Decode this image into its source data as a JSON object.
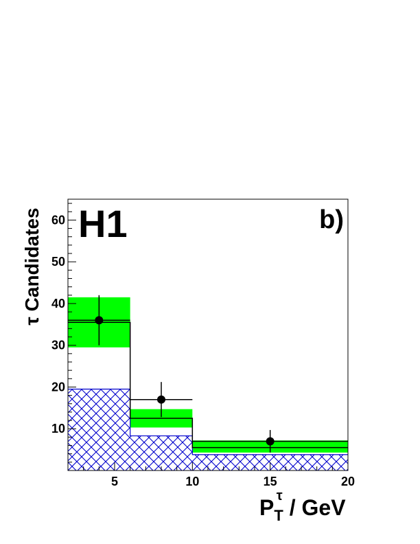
{
  "chart_data": {
    "type": "bar",
    "experiment_label": "H1",
    "panel_label": "b)",
    "ylabel_symbol": "τ",
    "ylabel_text": "Candidates",
    "xlabel_main": "P",
    "xlabel_sub": "T",
    "xlabel_sup": "τ",
    "xlabel_unit": "/ GeV",
    "xlim": [
      2,
      20
    ],
    "ylim": [
      0,
      65
    ],
    "x_ticks": [
      "5",
      "10",
      "15",
      "20"
    ],
    "x_tick_values": [
      5,
      10,
      15,
      20
    ],
    "y_ticks": [
      "10",
      "20",
      "30",
      "40",
      "50",
      "60"
    ],
    "y_tick_values": [
      10,
      20,
      30,
      40,
      50,
      60
    ],
    "bin_edges": [
      2,
      6,
      10,
      20
    ],
    "prediction": {
      "values": [
        35.5,
        12.5,
        5.5
      ],
      "band_low": [
        29.5,
        10.3,
        4.3
      ],
      "band_high": [
        41.5,
        14.7,
        7.2
      ],
      "band_color": "#00ff00"
    },
    "background": {
      "values": [
        19.5,
        8.3,
        3.8
      ],
      "hatch_color": "#0000cc"
    },
    "data": {
      "x": [
        4,
        8,
        15
      ],
      "y": [
        36,
        17,
        7
      ],
      "y_err_low": [
        6,
        4.2,
        2.7
      ],
      "y_err_high": [
        6,
        4.2,
        2.7
      ],
      "x_err": [
        2,
        2,
        5
      ]
    }
  }
}
